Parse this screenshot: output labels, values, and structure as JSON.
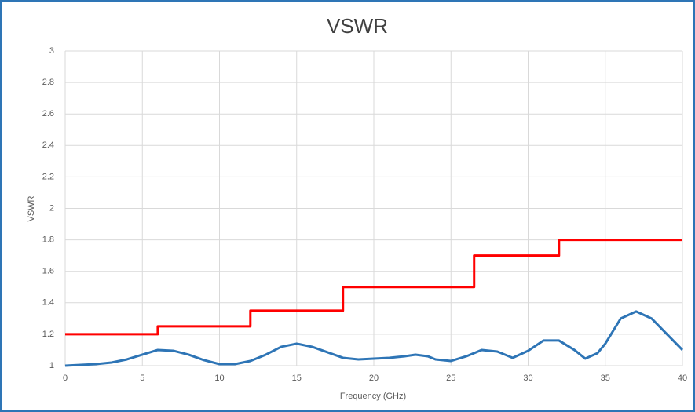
{
  "chart_data": {
    "type": "line",
    "title": "VSWR",
    "xlabel": "Frequency (GHz)",
    "ylabel": "VSWR",
    "xlim": [
      0,
      40
    ],
    "xticks": [
      0,
      5,
      10,
      15,
      20,
      25,
      30,
      35,
      40
    ],
    "ylim": [
      1,
      3
    ],
    "yticks": [
      1,
      1.2,
      1.4,
      1.6,
      1.8,
      2,
      2.2,
      2.4,
      2.6,
      2.8,
      3
    ],
    "grid": true,
    "series": [
      {
        "color": "#ff0000",
        "x": [
          0,
          6,
          6,
          12,
          12,
          18,
          18,
          26.5,
          26.5,
          32,
          32,
          40
        ],
        "values": [
          1.2,
          1.2,
          1.25,
          1.25,
          1.35,
          1.35,
          1.5,
          1.5,
          1.7,
          1.7,
          1.8,
          1.8
        ]
      },
      {
        "color": "#2e75b6",
        "x": [
          0,
          1,
          2,
          3,
          4,
          5,
          6,
          7,
          8,
          9,
          10,
          11,
          12,
          13,
          14,
          15,
          16,
          17,
          18,
          19,
          20,
          21,
          22,
          22.7,
          23.5,
          24,
          25,
          26,
          27,
          28,
          29,
          30,
          31,
          32,
          33,
          33.7,
          34.5,
          35,
          36,
          37,
          38,
          39,
          40
        ],
        "values": [
          1.0,
          1.005,
          1.01,
          1.02,
          1.04,
          1.07,
          1.1,
          1.095,
          1.07,
          1.035,
          1.01,
          1.01,
          1.03,
          1.07,
          1.12,
          1.14,
          1.12,
          1.085,
          1.05,
          1.04,
          1.045,
          1.05,
          1.06,
          1.07,
          1.06,
          1.04,
          1.03,
          1.06,
          1.1,
          1.09,
          1.05,
          1.095,
          1.16,
          1.16,
          1.1,
          1.045,
          1.08,
          1.14,
          1.3,
          1.345,
          1.3,
          1.2,
          1.1
        ]
      }
    ]
  }
}
